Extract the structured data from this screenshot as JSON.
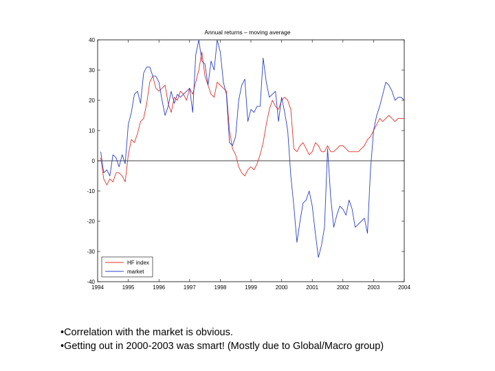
{
  "chart_data": {
    "type": "line",
    "title": "Annual returns – moving average",
    "xlabel": "",
    "ylabel": "",
    "xlim": [
      1994,
      2004
    ],
    "ylim": [
      -40,
      40
    ],
    "x_ticks": [
      "1994",
      "1995",
      "1996",
      "1997",
      "1998",
      "1999",
      "2000",
      "2001",
      "2002",
      "2003",
      "2004"
    ],
    "y_ticks": [
      "40",
      "30",
      "20",
      "10",
      "0",
      "-10",
      "-20",
      "-30",
      "-40"
    ],
    "reference_line": 0,
    "legend": {
      "position": "bottom-left",
      "entries": [
        "HF index",
        "market"
      ]
    },
    "series": [
      {
        "name": "HF index",
        "color": "#e0302a",
        "x": [
          1994.1,
          1994.2,
          1994.3,
          1994.4,
          1994.5,
          1994.6,
          1994.7,
          1994.8,
          1994.9,
          1995.0,
          1995.1,
          1995.2,
          1995.3,
          1995.4,
          1995.5,
          1995.6,
          1995.7,
          1995.8,
          1995.9,
          1996.0,
          1996.1,
          1996.2,
          1996.3,
          1996.4,
          1996.5,
          1996.6,
          1996.7,
          1996.8,
          1996.9,
          1997.0,
          1997.1,
          1997.2,
          1997.3,
          1997.4,
          1997.5,
          1997.6,
          1997.7,
          1997.8,
          1997.9,
          1998.0,
          1998.1,
          1998.2,
          1998.3,
          1998.4,
          1998.5,
          1998.6,
          1998.7,
          1998.8,
          1998.9,
          1999.0,
          1999.1,
          1999.2,
          1999.3,
          1999.4,
          1999.5,
          1999.6,
          1999.7,
          1999.8,
          1999.9,
          2000.0,
          2000.1,
          2000.2,
          2000.3,
          2000.4,
          2000.5,
          2000.6,
          2000.7,
          2000.8,
          2000.9,
          2001.0,
          2001.1,
          2001.2,
          2001.3,
          2001.4,
          2001.5,
          2001.6,
          2001.7,
          2001.8,
          2001.9,
          2002.0,
          2002.1,
          2002.2,
          2002.3,
          2002.4,
          2002.5,
          2002.6,
          2002.7,
          2002.8,
          2002.9,
          2003.0,
          2003.1,
          2003.2,
          2003.3,
          2003.4,
          2003.5,
          2003.6,
          2003.7,
          2003.8,
          2003.9,
          2004.0
        ],
        "values": [
          1,
          -6,
          -8,
          -6,
          -7,
          -4,
          -4,
          -5,
          -7,
          2,
          7,
          6,
          9,
          13,
          14,
          19,
          26,
          28,
          24,
          23,
          24,
          25,
          19,
          16,
          21,
          20,
          23,
          22,
          20,
          24,
          22,
          26,
          30,
          36,
          28,
          25,
          22,
          21,
          26,
          25,
          24,
          23,
          10,
          4,
          2,
          -2,
          -4,
          -5,
          -3,
          -2,
          -3,
          -1,
          2,
          6,
          12,
          17,
          20,
          18,
          17,
          20,
          21,
          20,
          17,
          4,
          3,
          5,
          6,
          4,
          2,
          3,
          6,
          5,
          3,
          3,
          5,
          3,
          3,
          4,
          5,
          5,
          4,
          3,
          3,
          3,
          3,
          4,
          5,
          7,
          8,
          10,
          12,
          14,
          13,
          14,
          15,
          14,
          13,
          14,
          14,
          14
        ]
      },
      {
        "name": "market",
        "color": "#2a3fc8",
        "x": [
          1994.1,
          1994.2,
          1994.3,
          1994.4,
          1994.5,
          1994.6,
          1994.7,
          1994.8,
          1994.9,
          1995.0,
          1995.1,
          1995.2,
          1995.3,
          1995.4,
          1995.5,
          1995.6,
          1995.7,
          1995.8,
          1995.9,
          1996.0,
          1996.1,
          1996.2,
          1996.3,
          1996.4,
          1996.5,
          1996.6,
          1996.7,
          1996.8,
          1996.9,
          1997.0,
          1997.1,
          1997.2,
          1997.3,
          1997.4,
          1997.5,
          1997.6,
          1997.7,
          1997.8,
          1997.9,
          1998.0,
          1998.1,
          1998.2,
          1998.3,
          1998.4,
          1998.5,
          1998.6,
          1998.7,
          1998.8,
          1998.9,
          1999.0,
          1999.1,
          1999.2,
          1999.3,
          1999.4,
          1999.5,
          1999.6,
          1999.7,
          1999.8,
          1999.9,
          2000.0,
          2000.1,
          2000.2,
          2000.3,
          2000.4,
          2000.5,
          2000.6,
          2000.7,
          2000.8,
          2000.9,
          2001.0,
          2001.1,
          2001.2,
          2001.3,
          2001.4,
          2001.5,
          2001.6,
          2001.7,
          2001.8,
          2001.9,
          2002.0,
          2002.1,
          2002.2,
          2002.3,
          2002.4,
          2002.5,
          2002.6,
          2002.7,
          2002.8,
          2002.9,
          2003.0,
          2003.1,
          2003.2,
          2003.3,
          2003.4,
          2003.5,
          2003.6,
          2003.7,
          2003.8,
          2003.9,
          2004.0
        ],
        "values": [
          3,
          -4,
          -3,
          -5,
          2,
          1,
          -2,
          2,
          -1,
          12,
          16,
          22,
          23,
          19,
          29,
          31,
          31,
          28,
          28,
          26,
          20,
          15,
          18,
          23,
          19,
          22,
          21,
          22,
          23,
          24,
          16,
          35,
          40,
          33,
          32,
          25,
          33,
          30,
          40,
          36,
          26,
          22,
          6,
          5,
          8,
          20,
          25,
          27,
          13,
          17,
          16,
          18,
          18,
          34,
          26,
          21,
          22,
          23,
          13,
          21,
          16,
          10,
          -5,
          -15,
          -27,
          -20,
          -14,
          -13,
          -10,
          -15,
          -24,
          -32,
          -28,
          -22,
          4,
          -12,
          -22,
          -18,
          -15,
          -16,
          -18,
          -13,
          -16,
          -22,
          -21,
          -20,
          -19,
          -24,
          -3,
          10,
          15,
          18,
          22,
          26,
          25,
          23,
          20,
          21,
          21,
          20
        ]
      }
    ]
  },
  "notes": [
    "•Correlation with the market is obvious.",
    "•Getting out in 2000-2003 was smart! (Mostly due to Global/Macro group)"
  ]
}
